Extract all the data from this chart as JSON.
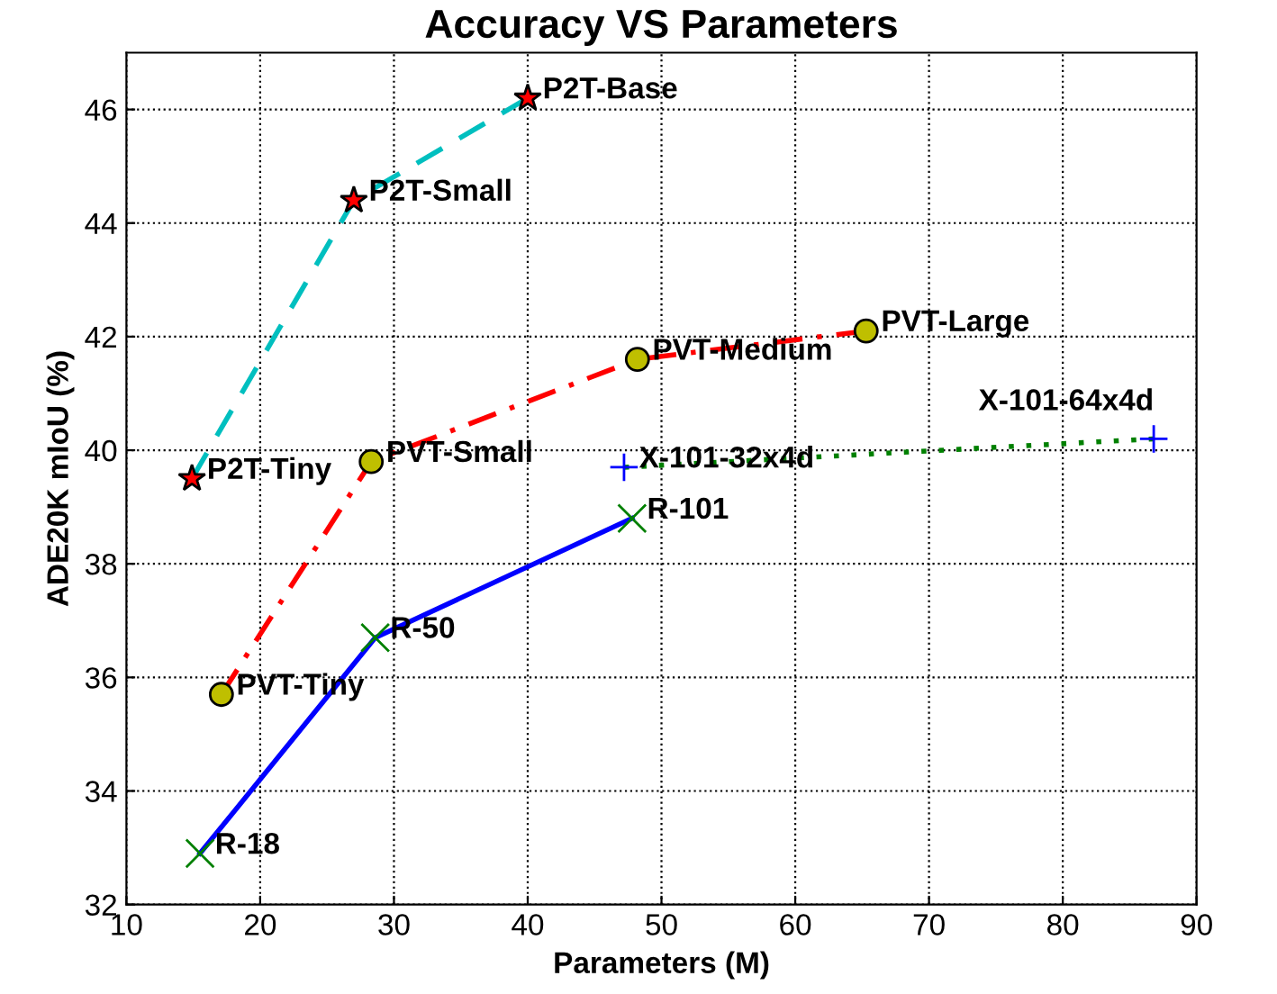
{
  "chart_data": {
    "type": "line",
    "title": "Accuracy VS Parameters",
    "xlabel": "Parameters (M)",
    "ylabel": "ADE20K mIoU (%)",
    "xlim": [
      10,
      90
    ],
    "xticks": [
      10,
      20,
      30,
      40,
      50,
      60,
      70,
      80,
      90
    ],
    "ylim": [
      32,
      47
    ],
    "yticks": [
      32,
      34,
      36,
      38,
      40,
      42,
      44,
      46
    ],
    "grid": true,
    "series": [
      {
        "color": "#00bfbf",
        "marker": "star",
        "colors": [
          "#ff0000",
          "#ff0000",
          "#ff0000"
        ],
        "line_style": "dashed",
        "x": [
          14.9,
          27.0,
          40.0
        ],
        "values": [
          39.5,
          44.4,
          46.2
        ]
      },
      {
        "color": "#ff0000",
        "marker": "circle",
        "colors": [
          "#bfbf00",
          "#bfbf00",
          "#bfbf00",
          "#bfbf00"
        ],
        "line_style": "dashdot",
        "x": [
          17.1,
          28.3,
          48.2,
          65.3
        ],
        "values": [
          35.7,
          39.8,
          41.6,
          42.1
        ]
      },
      {
        "color": "#008000",
        "marker": "plus",
        "colors": [
          "#0000ff",
          "#0000ff"
        ],
        "line_style": "dotted",
        "x": [
          47.2,
          86.8
        ],
        "values": [
          39.7,
          40.2
        ]
      },
      {
        "color": "#0000ff",
        "marker": "cross",
        "colors": [
          "#008000",
          "#008000",
          "#008000"
        ],
        "line_style": "solid",
        "x": [
          15.5,
          28.6,
          47.8
        ],
        "values": [
          32.9,
          36.7,
          38.8
        ]
      }
    ],
    "annotations": [
      {
        "text": "P2T-Tiny",
        "x": 14.9,
        "y": 39.5
      },
      {
        "text": "P2T-Small",
        "x": 27.0,
        "y": 44.4
      },
      {
        "text": "P2T-Base",
        "x": 40.0,
        "y": 46.2
      },
      {
        "text": "PVT-Tiny",
        "x": 17.1,
        "y": 35.7
      },
      {
        "text": "PVT-Small",
        "x": 28.3,
        "y": 39.8
      },
      {
        "text": "PVT-Medium",
        "x": 48.2,
        "y": 41.6
      },
      {
        "text": "PVT-Large",
        "x": 65.3,
        "y": 42.1
      },
      {
        "text": "X-101-32x4d",
        "x": 47.2,
        "y": 39.7
      },
      {
        "text": "X-101-64x4d",
        "x": 86.8,
        "y": 40.2
      },
      {
        "text": "R-18",
        "x": 15.5,
        "y": 32.9
      },
      {
        "text": "R-50",
        "x": 28.6,
        "y": 36.7
      },
      {
        "text": "R-101",
        "x": 47.8,
        "y": 38.8
      }
    ]
  }
}
